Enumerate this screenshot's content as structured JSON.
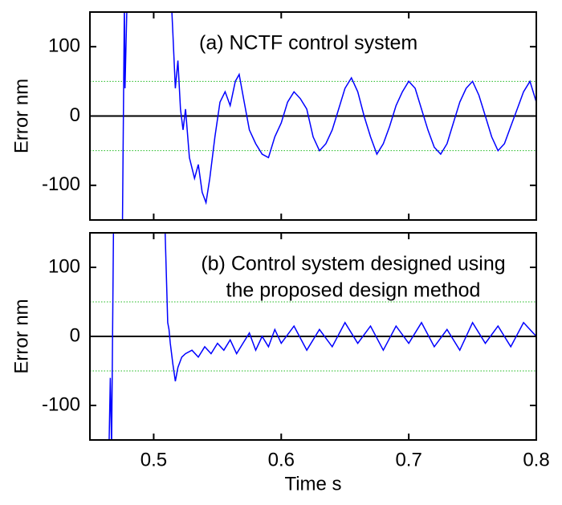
{
  "chart_data": [
    {
      "type": "line",
      "annotation": "(a) NCTF control system",
      "ylabel": "Error  nm",
      "xlim": [
        0.45,
        0.8
      ],
      "xticks": [
        0.5,
        0.6,
        0.7,
        0.8
      ],
      "ylim": [
        -150,
        150
      ],
      "yticks": [
        -100,
        0,
        100
      ],
      "hlines": [
        -50,
        50
      ],
      "hline_color": "#22bb22",
      "baseline": 0,
      "series": [
        {
          "color": "#0000ff",
          "x": [
            0.475,
            0.4755,
            0.477,
            0.4775,
            0.479,
            0.481,
            0.513,
            0.515,
            0.517,
            0.519,
            0.521,
            0.523,
            0.525,
            0.528,
            0.532,
            0.535,
            0.538,
            0.541,
            0.544,
            0.548,
            0.552,
            0.556,
            0.56,
            0.564,
            0.567,
            0.571,
            0.575,
            0.58,
            0.585,
            0.59,
            0.595,
            0.6,
            0.605,
            0.61,
            0.615,
            0.62,
            0.625,
            0.63,
            0.635,
            0.64,
            0.645,
            0.65,
            0.655,
            0.66,
            0.665,
            0.67,
            0.675,
            0.68,
            0.685,
            0.69,
            0.695,
            0.7,
            0.705,
            0.71,
            0.715,
            0.72,
            0.725,
            0.73,
            0.735,
            0.74,
            0.745,
            0.75,
            0.755,
            0.76,
            0.765,
            0.77,
            0.775,
            0.78,
            0.785,
            0.79,
            0.795,
            0.8
          ],
          "values": [
            -160,
            -160,
            160,
            40,
            160,
            200,
            200,
            120,
            40,
            80,
            10,
            -20,
            10,
            -60,
            -90,
            -70,
            -110,
            -125,
            -90,
            -30,
            20,
            35,
            15,
            50,
            60,
            20,
            -20,
            -40,
            -55,
            -60,
            -30,
            -10,
            20,
            35,
            25,
            10,
            -30,
            -50,
            -40,
            -20,
            10,
            40,
            55,
            35,
            0,
            -30,
            -55,
            -40,
            -15,
            15,
            35,
            50,
            40,
            10,
            -20,
            -45,
            -55,
            -40,
            -10,
            20,
            40,
            50,
            30,
            0,
            -30,
            -50,
            -40,
            -15,
            10,
            35,
            50,
            20
          ]
        }
      ]
    },
    {
      "type": "line",
      "annotation": [
        "(b) Control system designed using",
        "the proposed design method"
      ],
      "ylabel": "Error  nm",
      "xlabel": "Time   s",
      "xlim": [
        0.45,
        0.8
      ],
      "xticks": [
        0.5,
        0.6,
        0.7,
        0.8
      ],
      "ylim": [
        -150,
        150
      ],
      "yticks": [
        -100,
        0,
        100
      ],
      "hlines": [
        -50,
        50
      ],
      "hline_color": "#22bb22",
      "baseline": 0,
      "series": [
        {
          "color": "#0000ff",
          "x": [
            0.465,
            0.466,
            0.467,
            0.4685,
            0.47,
            0.507,
            0.509,
            0.511,
            0.512,
            0.513,
            0.515,
            0.517,
            0.519,
            0.522,
            0.525,
            0.53,
            0.535,
            0.54,
            0.545,
            0.55,
            0.555,
            0.56,
            0.565,
            0.57,
            0.575,
            0.58,
            0.585,
            0.59,
            0.595,
            0.6,
            0.61,
            0.62,
            0.63,
            0.64,
            0.65,
            0.66,
            0.67,
            0.68,
            0.69,
            0.7,
            0.71,
            0.72,
            0.73,
            0.74,
            0.75,
            0.76,
            0.77,
            0.78,
            0.79,
            0.8
          ],
          "values": [
            -160,
            -60,
            -160,
            160,
            200,
            200,
            150,
            20,
            10,
            -10,
            -40,
            -65,
            -45,
            -30,
            -25,
            -20,
            -30,
            -15,
            -25,
            -10,
            -20,
            -5,
            -25,
            -10,
            5,
            -20,
            0,
            -15,
            10,
            -10,
            15,
            -20,
            10,
            -15,
            20,
            -10,
            15,
            -20,
            15,
            -10,
            20,
            -15,
            10,
            -20,
            20,
            -10,
            15,
            -15,
            20,
            0
          ]
        }
      ]
    }
  ]
}
